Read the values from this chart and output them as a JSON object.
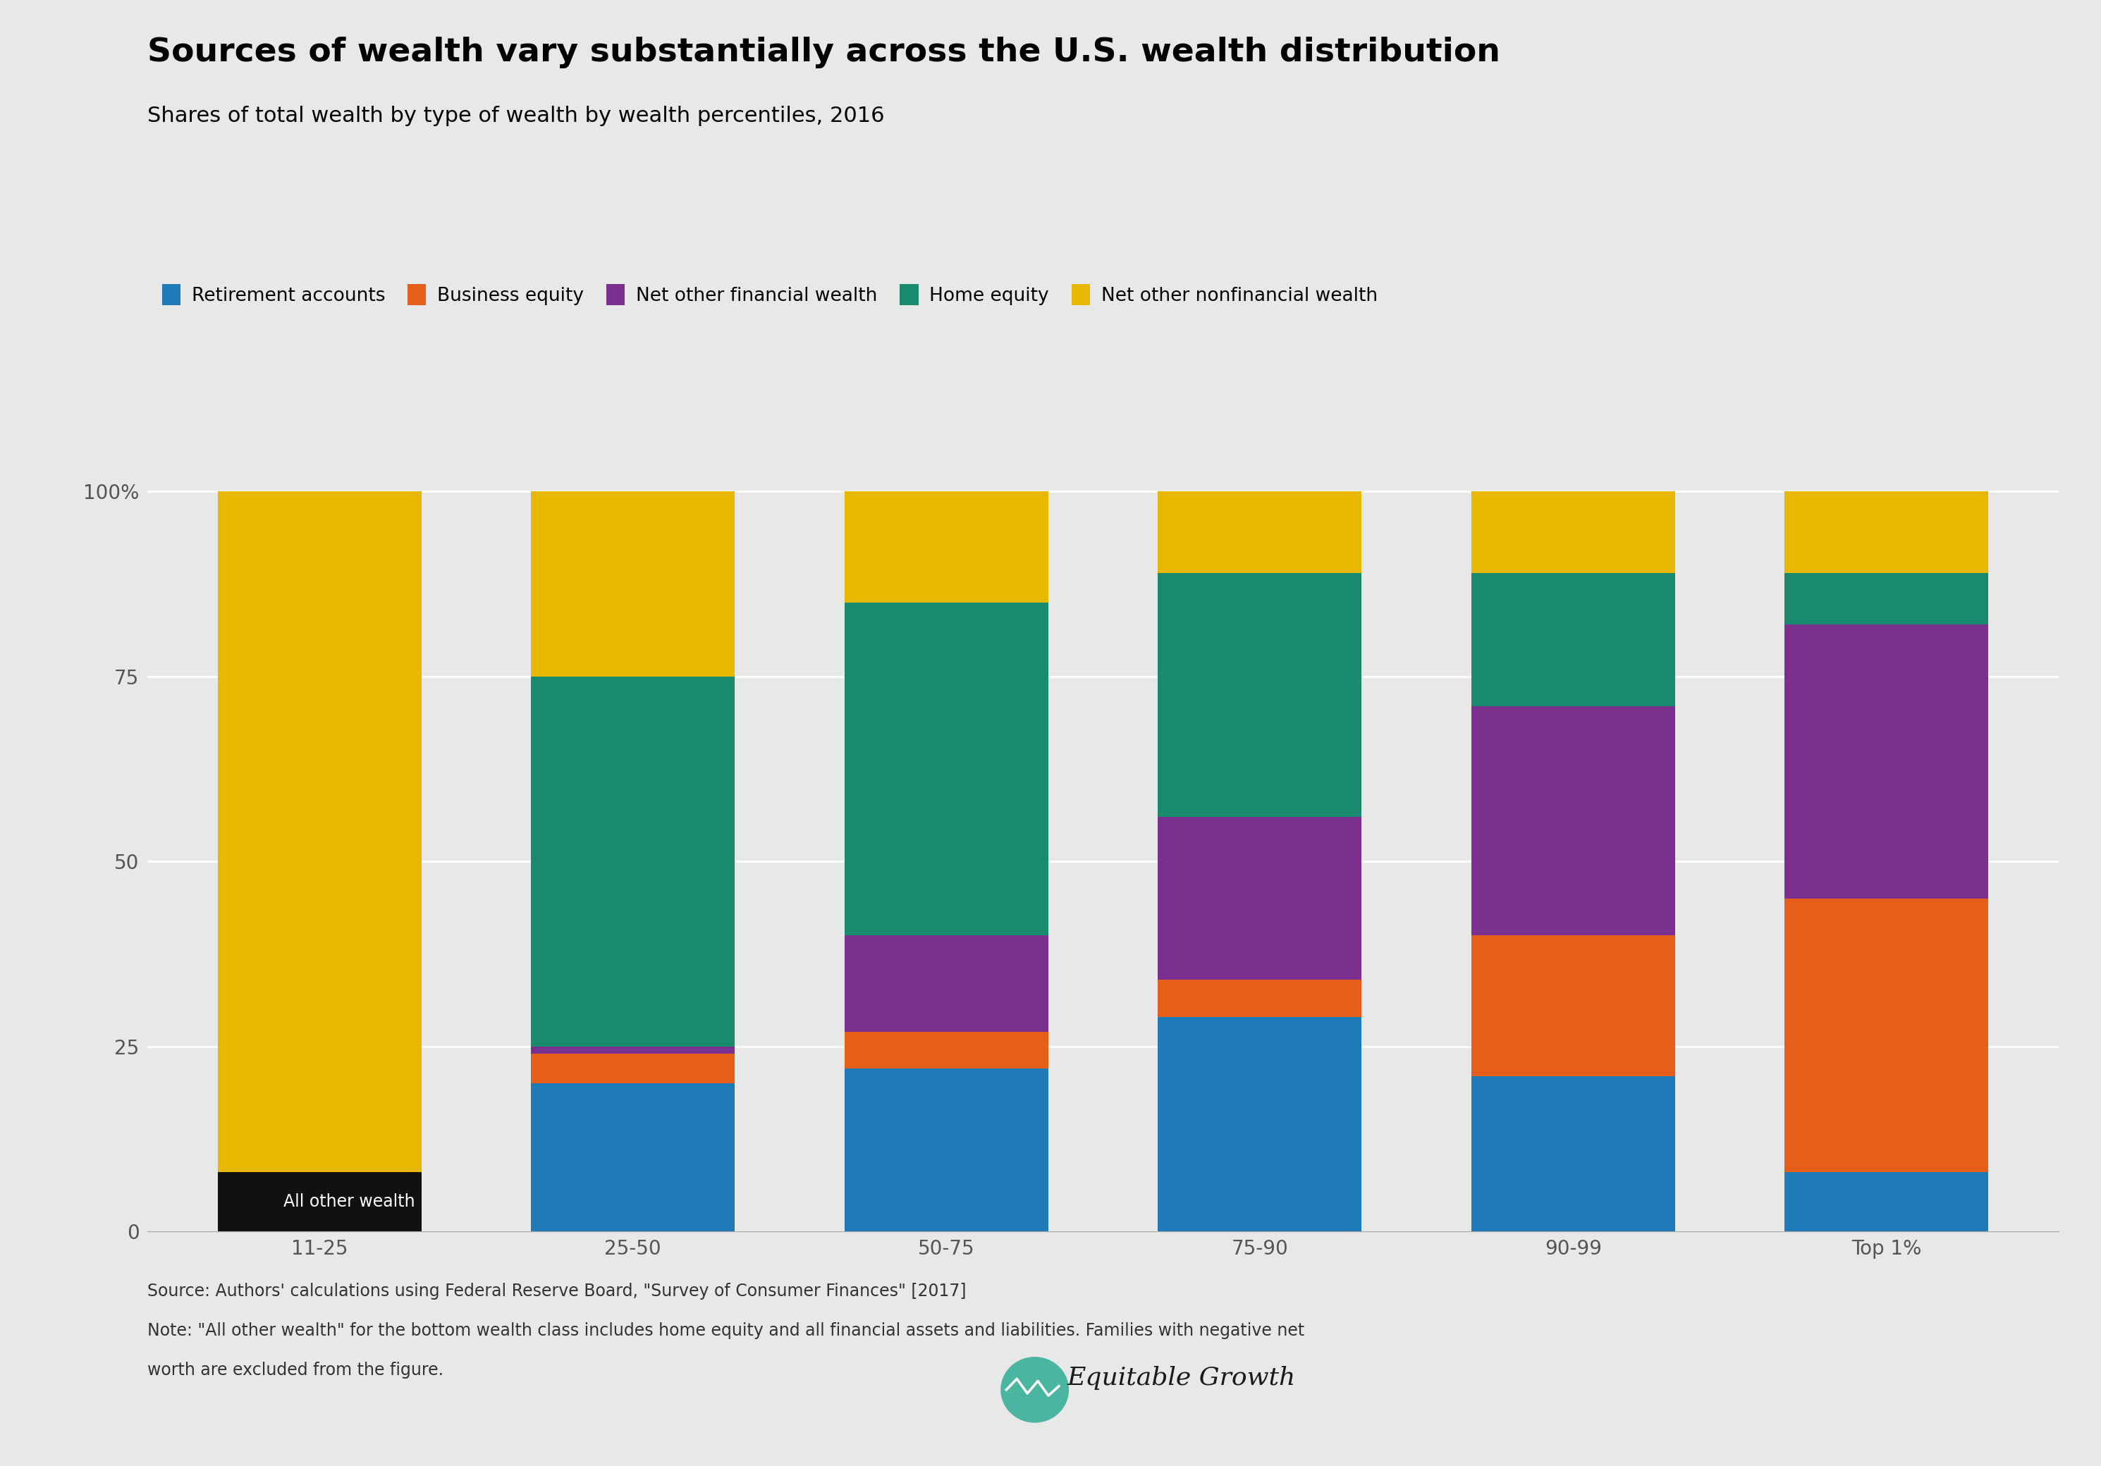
{
  "categories": [
    "11-25",
    "25-50",
    "50-75",
    "75-90",
    "90-99",
    "Top 1%"
  ],
  "series": {
    "All other wealth": [
      8,
      0,
      0,
      0,
      0,
      0
    ],
    "Retirement accounts": [
      0,
      20,
      22,
      29,
      21,
      8
    ],
    "Business equity": [
      0,
      4,
      5,
      5,
      19,
      37
    ],
    "Net other financial wealth": [
      0,
      1,
      13,
      22,
      31,
      37
    ],
    "Home equity": [
      0,
      50,
      45,
      33,
      18,
      7
    ],
    "Net other nonfinancial wealth": [
      92,
      25,
      15,
      11,
      11,
      11
    ]
  },
  "colors": {
    "All other wealth": "#111111",
    "Retirement accounts": "#1f7ab8",
    "Business equity": "#e55e1a",
    "Net other financial wealth": "#7b2f8e",
    "Home equity": "#1a8a6e",
    "Net other nonfinancial wealth": "#e8b800"
  },
  "legend_order": [
    "Retirement accounts",
    "Business equity",
    "Net other financial wealth",
    "Home equity",
    "Net other nonfinancial wealth"
  ],
  "title": "Sources of wealth vary substantially across the U.S. wealth distribution",
  "subtitle": "Shares of total wealth by type of wealth by wealth percentiles, 2016",
  "source_line1": "Source: Authors' calculations using Federal Reserve Board, \"Survey of Consumer Finances\" [2017]",
  "source_line2": "Note: \"All other wealth\" for the bottom wealth class includes home equity and all financial assets and liabilities. Families with negative net",
  "source_line3": "worth are excluded from the figure.",
  "all_other_label": "All other wealth",
  "bg_color": "#e8e8e8",
  "title_fontsize": 34,
  "subtitle_fontsize": 22,
  "legend_fontsize": 19,
  "axis_fontsize": 20,
  "tick_color": "#555555",
  "source_fontsize": 17,
  "bar_width": 0.65,
  "ylim": [
    0,
    103
  ],
  "yticks": [
    0,
    25,
    50,
    75,
    100
  ],
  "yticklabels": [
    "0",
    "25",
    "50",
    "75",
    "100%"
  ]
}
